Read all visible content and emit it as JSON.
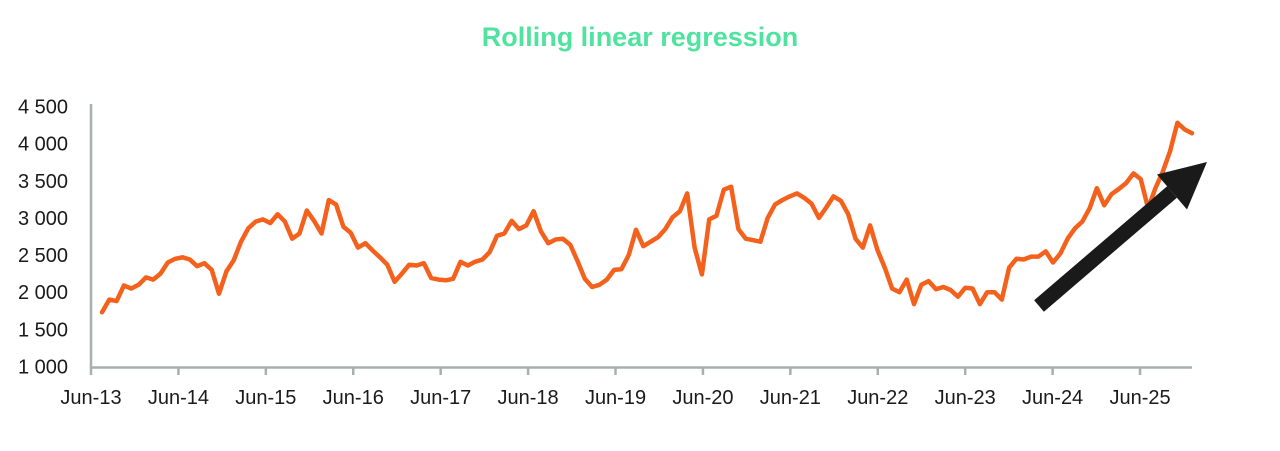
{
  "title": {
    "text": "Rolling linear regression",
    "color": "#50E3A0"
  },
  "colors": {
    "line": "#F4611C",
    "title": "#50E3A0",
    "axis": "#A7B0AE",
    "text": "#1A1A1A",
    "arrow": "#1A1A1A",
    "background": "#FFFFFF"
  },
  "chart_data": {
    "type": "line",
    "title": "Rolling linear regression",
    "xlabel": "",
    "ylabel": "",
    "ylim": [
      1000,
      4500
    ],
    "grid": false,
    "legend": "none",
    "x_tick_labels": [
      "Jun-13",
      "Jun-14",
      "Jun-15",
      "Jun-16",
      "Jun-17",
      "Jun-18",
      "Jun-19",
      "Jun-20",
      "Jun-21",
      "Jun-22",
      "Jun-23",
      "Jun-24",
      "Jun-25"
    ],
    "y_ticks": [
      4500,
      4000,
      3500,
      3000,
      2500,
      2000,
      1500,
      1000
    ],
    "y_tick_labels": [
      "4 500",
      "4 000",
      "3 500",
      "3 000",
      "2 500",
      "2 000",
      "1 500",
      "1 000"
    ],
    "series": [
      {
        "name": "Rolling linear regression",
        "color": "#F4611C",
        "frequency": "monthly",
        "x_start_label": "Jun-13",
        "values": [
          1730,
          1900,
          1880,
          2090,
          2050,
          2100,
          2200,
          2170,
          2250,
          2400,
          2450,
          2470,
          2440,
          2350,
          2390,
          2300,
          1980,
          2280,
          2430,
          2680,
          2860,
          2950,
          2980,
          2930,
          3050,
          2950,
          2720,
          2790,
          3100,
          2960,
          2790,
          3240,
          3180,
          2880,
          2800,
          2600,
          2660,
          2560,
          2470,
          2370,
          2140,
          2250,
          2370,
          2360,
          2390,
          2190,
          2170,
          2160,
          2180,
          2410,
          2360,
          2410,
          2440,
          2540,
          2760,
          2790,
          2960,
          2850,
          2900,
          3090,
          2820,
          2660,
          2710,
          2720,
          2640,
          2420,
          2180,
          2070,
          2100,
          2170,
          2300,
          2310,
          2500,
          2840,
          2620,
          2680,
          2740,
          2850,
          3010,
          3090,
          3330,
          2600,
          2240,
          2980,
          3030,
          3380,
          3420,
          2850,
          2720,
          2700,
          2680,
          3000,
          3180,
          3240,
          3290,
          3330,
          3270,
          3190,
          3000,
          3140,
          3290,
          3230,
          3050,
          2720,
          2600,
          2900,
          2570,
          2330,
          2050,
          2000,
          2170,
          1840,
          2100,
          2150,
          2040,
          2070,
          2030,
          1940,
          2060,
          2050,
          1840,
          2000,
          2000,
          1900,
          2330,
          2450,
          2440,
          2480,
          2480,
          2550,
          2400,
          2520,
          2720,
          2860,
          2950,
          3130,
          3400,
          3170,
          3320,
          3390,
          3470,
          3600,
          3520,
          3130,
          3400,
          3620,
          3900,
          4280,
          4190,
          4140
        ]
      }
    ],
    "annotations": [
      {
        "type": "arrow",
        "description": "thick black arrow pointing up-right over the 2024-2025 rise",
        "color": "#1A1A1A"
      }
    ]
  }
}
